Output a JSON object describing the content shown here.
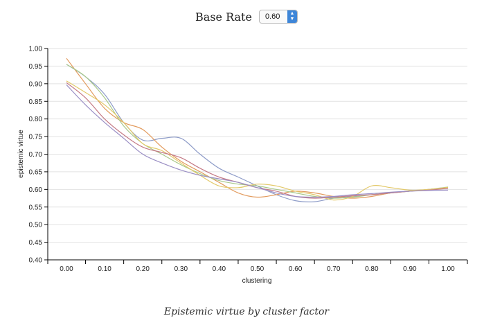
{
  "controls": {
    "base_rate_label": "Base Rate",
    "base_rate_value": "0.60",
    "arrow_icon": "up-down-chevron-icon"
  },
  "caption": "Epistemic virtue by cluster factor",
  "chart_data": {
    "type": "line",
    "title": "",
    "xlabel": "clustering",
    "ylabel": "epistemic virtue",
    "xlim": [
      0,
      1
    ],
    "ylim": [
      0.4,
      1.0
    ],
    "x_ticks": [
      "0.00",
      "0.10",
      "0.20",
      "0.30",
      "0.40",
      "0.50",
      "0.60",
      "0.70",
      "0.80",
      "0.90",
      "1.00"
    ],
    "y_ticks": [
      "0.40",
      "0.45",
      "0.50",
      "0.55",
      "0.60",
      "0.65",
      "0.70",
      "0.75",
      "0.80",
      "0.85",
      "0.90",
      "0.95",
      "1.00"
    ],
    "grid": "horizontal",
    "legend": "none",
    "x": [
      0.0,
      0.05,
      0.1,
      0.15,
      0.2,
      0.25,
      0.3,
      0.35,
      0.4,
      0.45,
      0.5,
      0.55,
      0.6,
      0.65,
      0.7,
      0.75,
      0.8,
      0.85,
      0.9,
      0.95,
      1.0
    ],
    "series": [
      {
        "color": "#8e9cc8",
        "values": [
          0.955,
          0.92,
          0.87,
          0.79,
          0.74,
          0.745,
          0.745,
          0.7,
          0.66,
          0.635,
          0.61,
          0.585,
          0.568,
          0.565,
          0.575,
          0.58,
          0.585,
          0.59,
          0.595,
          0.6,
          0.605
        ]
      },
      {
        "color": "#e29a5c",
        "values": [
          0.972,
          0.9,
          0.83,
          0.79,
          0.77,
          0.72,
          0.68,
          0.65,
          0.62,
          0.59,
          0.578,
          0.585,
          0.595,
          0.59,
          0.58,
          0.575,
          0.58,
          0.59,
          0.595,
          0.6,
          0.605
        ]
      },
      {
        "color": "#a8c88a",
        "values": [
          0.955,
          0.92,
          0.86,
          0.78,
          0.73,
          0.7,
          0.67,
          0.645,
          0.625,
          0.615,
          0.61,
          0.6,
          0.59,
          0.58,
          0.575,
          0.578,
          0.585,
          0.59,
          0.595,
          0.6,
          0.607
        ]
      },
      {
        "color": "#e3c96a",
        "values": [
          0.908,
          0.875,
          0.84,
          0.79,
          0.73,
          0.71,
          0.675,
          0.64,
          0.61,
          0.605,
          0.615,
          0.61,
          0.595,
          0.585,
          0.57,
          0.58,
          0.61,
          0.605,
          0.598,
          0.6,
          0.606
        ]
      },
      {
        "color": "#c47a86",
        "values": [
          0.903,
          0.86,
          0.8,
          0.755,
          0.72,
          0.705,
          0.69,
          0.66,
          0.635,
          0.62,
          0.605,
          0.595,
          0.58,
          0.575,
          0.578,
          0.582,
          0.585,
          0.59,
          0.595,
          0.598,
          0.603
        ]
      },
      {
        "color": "#9a8ec4",
        "values": [
          0.897,
          0.84,
          0.79,
          0.745,
          0.7,
          0.675,
          0.655,
          0.64,
          0.63,
          0.62,
          0.605,
          0.59,
          0.58,
          0.578,
          0.58,
          0.585,
          0.588,
          0.592,
          0.595,
          0.597,
          0.598
        ]
      }
    ]
  }
}
